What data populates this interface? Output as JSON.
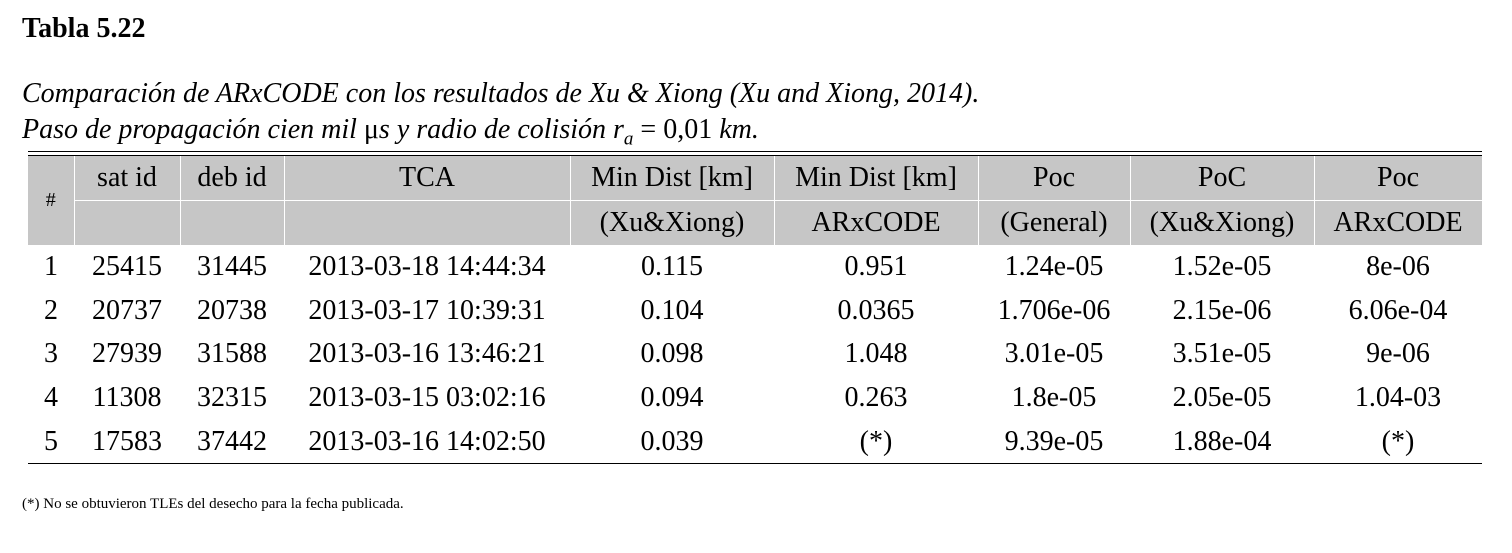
{
  "table_label": "Tabla 5.22",
  "caption": {
    "line1": "Comparación de ARxCODE con los resultados de Xu & Xiong (Xu and Xiong, 2014).",
    "line2_prefix": "Paso de propagación cien mil ",
    "line2_mu": "μ",
    "line2_mid": "s y radio de colisión ",
    "line2_r": "r",
    "line2_sub": "a",
    "line2_eq": " = 0,01 ",
    "line2_unit": "km."
  },
  "table": {
    "header_row1": [
      "sat id",
      "deb id",
      "TCA",
      "Min Dist [km]",
      "Min Dist [km]",
      "Poc",
      "PoC",
      "Poc"
    ],
    "header_row2": [
      "",
      "",
      "",
      "(Xu&Xiong)",
      "ARxCODE",
      "(General)",
      "(Xu&Xiong)",
      "ARxCODE"
    ],
    "hash_label": "#",
    "rows": [
      [
        "1",
        "25415",
        "31445",
        "2013-03-18 14:44:34",
        "0.115",
        "0.951",
        "1.24e-05",
        "1.52e-05",
        "8e-06"
      ],
      [
        "2",
        "20737",
        "20738",
        "2013-03-17 10:39:31",
        "0.104",
        "0.0365",
        "1.706e-06",
        "2.15e-06",
        "6.06e-04"
      ],
      [
        "3",
        "27939",
        "31588",
        "2013-03-16 13:46:21",
        "0.098",
        "1.048",
        "3.01e-05",
        "3.51e-05",
        "9e-06"
      ],
      [
        "4",
        "11308",
        "32315",
        "2013-03-15 03:02:16",
        "0.094",
        "0.263",
        "1.8e-05",
        "2.05e-05",
        "1.04-03"
      ],
      [
        "5",
        "17583",
        "37442",
        "2013-03-16 14:02:50",
        "0.039",
        "(*)",
        "9.39e-05",
        "1.88e-04",
        "(*)"
      ]
    ]
  },
  "footnote": "(*) No se obtuvieron TLEs del desecho para la fecha publicada."
}
